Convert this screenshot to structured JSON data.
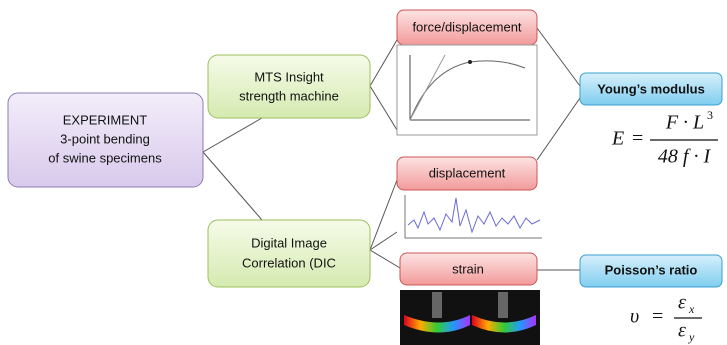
{
  "nodes": {
    "experiment": {
      "lines": [
        "EXPERIMENT",
        "3-point bending",
        "of  swine specimens"
      ]
    },
    "mts": {
      "lines": [
        "MTS Insight",
        "strength machine"
      ]
    },
    "dic": {
      "lines": [
        "Digital Image",
        "Correlation (DIC"
      ]
    },
    "force": {
      "label": "force/displacement"
    },
    "displacement": {
      "label": "displacement"
    },
    "strain": {
      "label": "strain"
    },
    "young": {
      "label": "Young’s modulus"
    },
    "poisson": {
      "label": "Poisson’s ratio"
    }
  },
  "formulas": {
    "young": {
      "lhs": "E",
      "eq": "=",
      "numerator": "F · L",
      "exponent": "3",
      "denominator": "48 f · I"
    },
    "poisson": {
      "lhs": "υ",
      "eq": "=",
      "numerator": "ε",
      "numerator_sub": "x",
      "denominator": "ε",
      "denominator_sub": "y"
    }
  }
}
